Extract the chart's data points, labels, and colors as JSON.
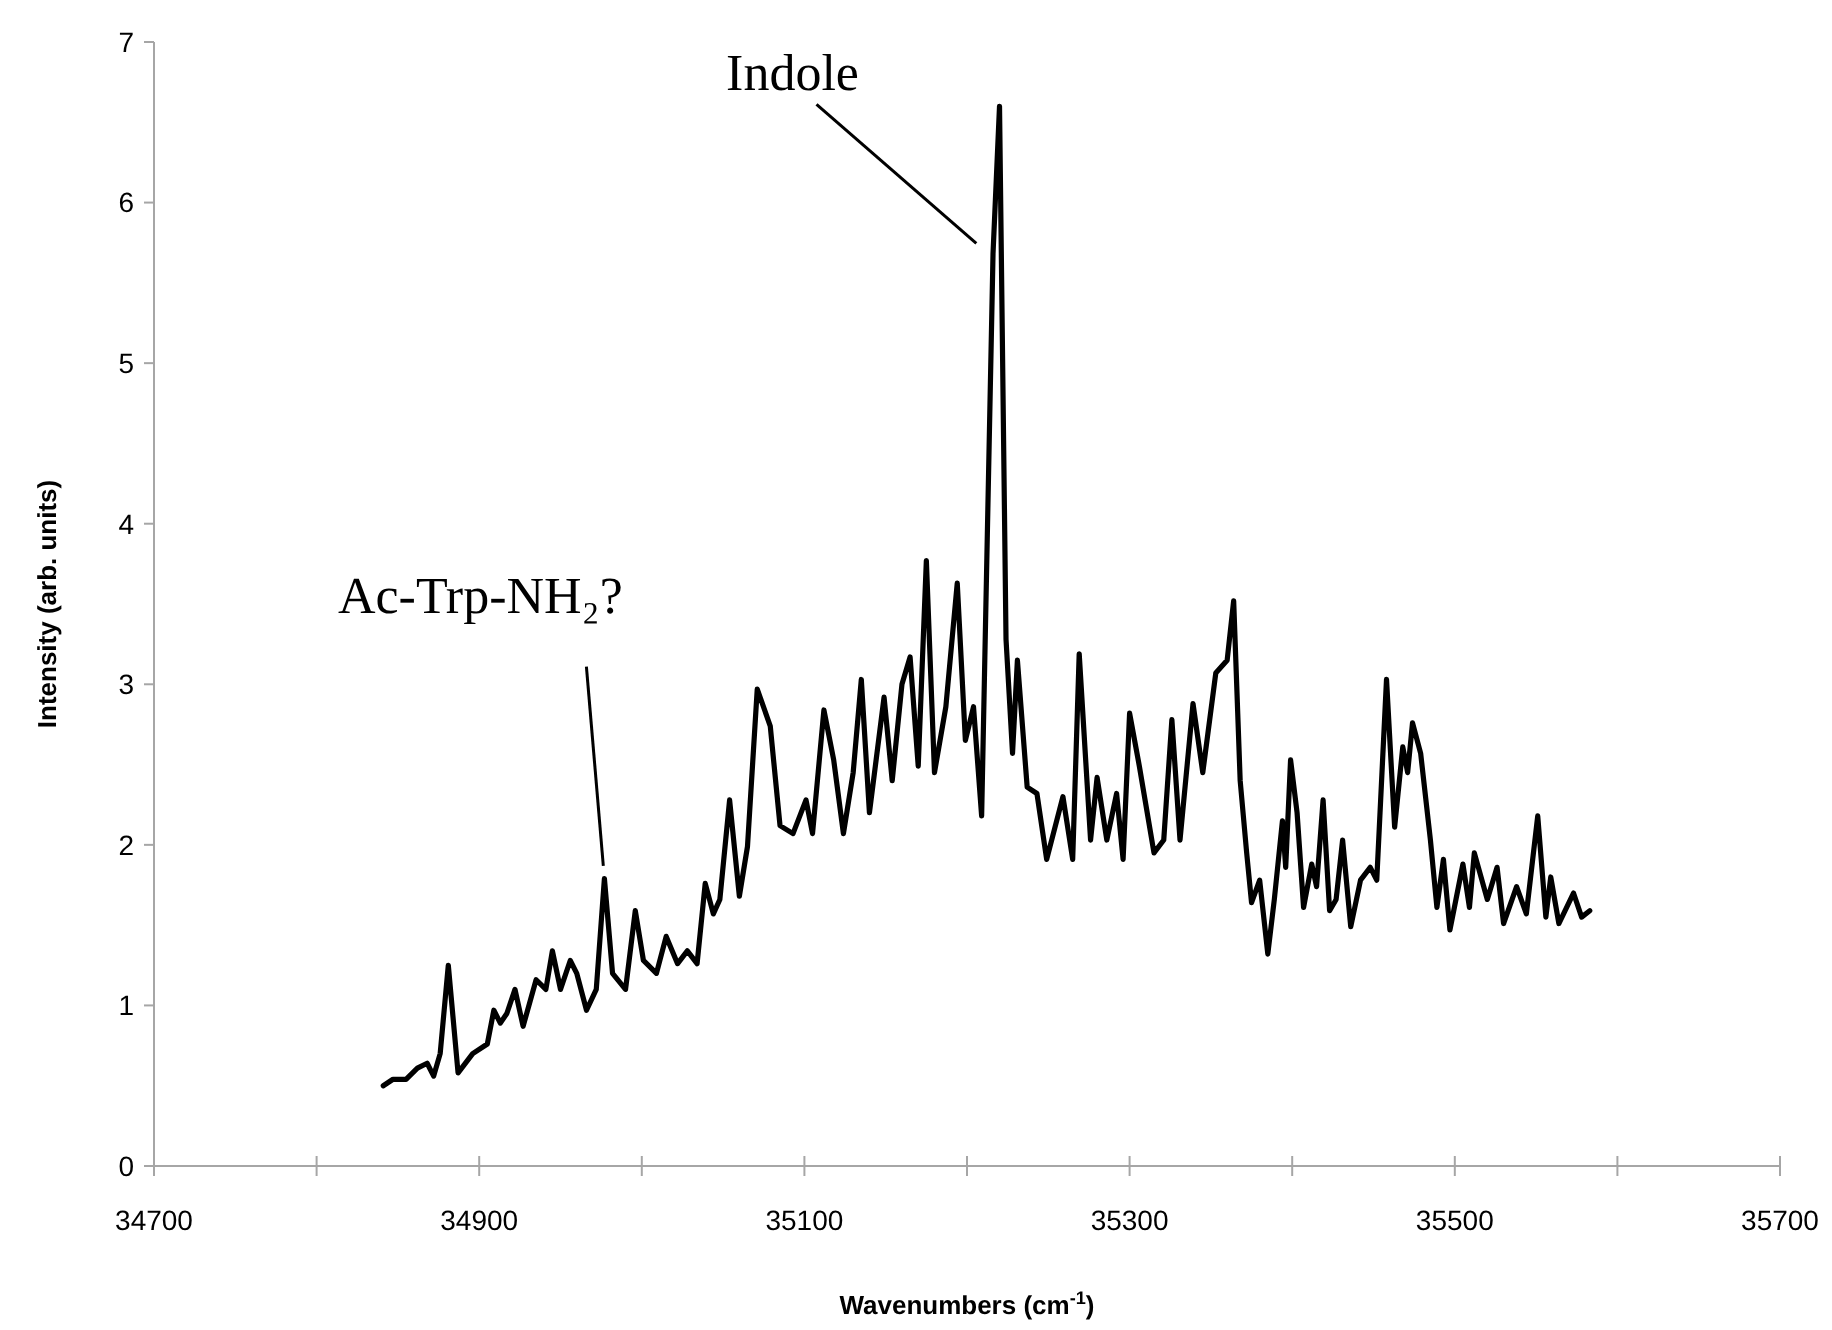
{
  "chart_data": {
    "type": "line",
    "xlabel": "Wavenumbers (cm$^{-1}$)",
    "ylabel": "Intensity (arb. units)",
    "xlim": [
      34700,
      35700
    ],
    "xticks": [
      34700,
      {
        "value": 34800,
        "label": null
      },
      34900,
      {
        "value": 35000,
        "label": null
      },
      35100,
      {
        "value": 35200,
        "label": null
      },
      35300,
      {
        "value": 35400,
        "label": null
      },
      35500,
      {
        "value": 35600,
        "label": null
      },
      35700
    ],
    "ylim": [
      0,
      7
    ],
    "yticks": [
      0,
      1,
      2,
      3,
      4,
      5,
      6,
      7
    ],
    "grid": false,
    "marker": "none",
    "line_style": "solid",
    "annotations": [
      {
        "text": "Indole",
        "x": 35212,
        "y": 5.69
      },
      {
        "text": "Ac-Trp-NH₂?",
        "x": 34977,
        "y": 1.79
      }
    ],
    "series": [
      {
        "color": "#000000",
        "x": [
          34841,
          34847,
          34855,
          34862,
          34868,
          34872,
          34876,
          34881,
          34887,
          34896,
          34905,
          34909,
          34913,
          34917,
          34922,
          34927,
          34935,
          34941,
          34945,
          34950,
          34956,
          34960,
          34966,
          34972,
          34977,
          34982,
          34990,
          34996,
          35001,
          35009,
          35015,
          35022,
          35028,
          35034,
          35039,
          35044,
          35048,
          35054,
          35060,
          35065,
          35071,
          35079,
          35085,
          35093,
          35101,
          35105,
          35112,
          35118,
          35124,
          35130,
          35135,
          35140,
          35149,
          35154,
          35160,
          35165,
          35170,
          35175,
          35180,
          35187,
          35194,
          35199,
          35204,
          35209,
          35216,
          35220,
          35224,
          35228,
          35231,
          35237,
          35243,
          35249,
          35259,
          35265,
          35269,
          35276,
          35280,
          35286,
          35292,
          35296,
          35300,
          35306,
          35315,
          35321,
          35326,
          35331,
          35339,
          35345,
          35353,
          35360,
          35364,
          35368,
          35372,
          35375,
          35380,
          35385,
          35389,
          35394,
          35396,
          35399,
          35403,
          35407,
          35412,
          35415,
          35419,
          35423,
          35427,
          35431,
          35436,
          35442,
          35448,
          35452,
          35458,
          35463,
          35468,
          35471,
          35474,
          35479,
          35485,
          35489,
          35493,
          35497,
          35505,
          35509,
          35512,
          35520,
          35526,
          35530,
          35538,
          35544,
          35551,
          35556,
          35559,
          35564,
          35573,
          35578,
          35583
        ],
        "values": [
          0.5,
          0.54,
          0.54,
          0.61,
          0.64,
          0.56,
          0.7,
          1.25,
          0.58,
          0.7,
          0.76,
          0.97,
          0.89,
          0.95,
          1.1,
          0.87,
          1.16,
          1.1,
          1.34,
          1.1,
          1.28,
          1.2,
          0.97,
          1.1,
          1.79,
          1.2,
          1.1,
          1.59,
          1.28,
          1.2,
          1.43,
          1.26,
          1.34,
          1.26,
          1.76,
          1.57,
          1.66,
          2.28,
          1.68,
          1.99,
          2.97,
          2.74,
          2.12,
          2.07,
          2.28,
          2.07,
          2.84,
          2.53,
          2.07,
          2.45,
          3.03,
          2.2,
          2.92,
          2.4,
          3.0,
          3.17,
          2.49,
          3.77,
          2.45,
          2.86,
          3.63,
          2.65,
          2.86,
          2.18,
          5.68,
          6.6,
          3.28,
          2.57,
          3.15,
          2.36,
          2.32,
          1.91,
          2.3,
          1.91,
          3.19,
          2.03,
          2.42,
          2.03,
          2.32,
          1.91,
          2.82,
          2.49,
          1.95,
          2.03,
          2.78,
          2.03,
          2.88,
          2.45,
          3.07,
          3.15,
          3.52,
          2.4,
          1.95,
          1.64,
          1.78,
          1.32,
          1.66,
          2.15,
          1.86,
          2.53,
          2.2,
          1.61,
          1.88,
          1.74,
          2.28,
          1.59,
          1.66,
          2.03,
          1.49,
          1.78,
          1.86,
          1.78,
          3.03,
          2.11,
          2.61,
          2.45,
          2.76,
          2.57,
          2.03,
          1.61,
          1.91,
          1.47,
          1.88,
          1.61,
          1.95,
          1.66,
          1.86,
          1.51,
          1.74,
          1.57,
          2.18,
          1.55,
          1.8,
          1.51,
          1.7,
          1.55,
          1.59
        ]
      }
    ]
  }
}
